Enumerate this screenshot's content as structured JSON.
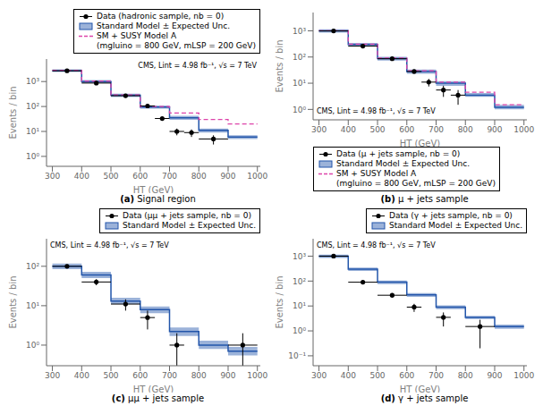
{
  "chart_data": [
    {
      "type": "histogram",
      "title": "(a) Signal region",
      "xlabel": "HT (GeV)",
      "ylabel": "Events / bin",
      "log": "y",
      "legend": "upper right",
      "annotations": [
        "CMS, Lint = 4.98 fb⁻¹, √s = 7 TeV"
      ],
      "bins": [
        300,
        400,
        500,
        600,
        650,
        700,
        750,
        800,
        900,
        1000
      ],
      "xlim": [
        280,
        1010
      ],
      "xticks": [
        300,
        400,
        500,
        600,
        700,
        800,
        900,
        1000
      ],
      "ylim": [
        0.4,
        8000
      ],
      "yticks": [
        {
          "value": 1,
          "label": "10⁰"
        },
        {
          "value": 10,
          "label": "10¹"
        },
        {
          "value": 100,
          "label": "10²"
        },
        {
          "value": 1000,
          "label": "10³"
        }
      ],
      "series": [
        {
          "name": "Data (hadronic sample, nb = 0)",
          "type": "scatter",
          "color": "#000000",
          "marker": "circle",
          "x": [
            350,
            450,
            550,
            625,
            675,
            725,
            775,
            850,
            950
          ],
          "xerr": [
            50,
            50,
            50,
            25,
            25,
            25,
            25,
            50,
            50
          ],
          "values": [
            2700,
            870,
            270,
            105,
            33,
            10,
            9,
            5,
            null
          ],
          "yerr_lo": [
            200,
            50,
            20,
            12,
            6,
            3,
            3,
            2,
            null
          ],
          "yerr_hi": [
            200,
            50,
            20,
            12,
            6,
            3,
            3,
            2,
            null
          ]
        },
        {
          "name": "Standard Model ± Expected Unc.",
          "type": "band",
          "color": "#2255aa",
          "values": [
            2700,
            1000,
            280,
            95,
            95,
            35,
            35,
            11,
            6
          ],
          "lower": [
            2400,
            870,
            240,
            82,
            82,
            29,
            29,
            9,
            5
          ],
          "upper": [
            3100,
            1150,
            330,
            110,
            110,
            42,
            42,
            13,
            7
          ]
        },
        {
          "name": "SM + SUSY Model A\n(mgluino = 800 GeV, mLSP = 200 GeV)",
          "type": "step",
          "color": "#dd44aa",
          "line_style": "dashed",
          "values": [
            2800,
            1050,
            290,
            100,
            100,
            55,
            55,
            30,
            20
          ]
        }
      ]
    },
    {
      "type": "histogram",
      "title": "(b) μ + jets sample",
      "xlabel": "HT (GeV)",
      "ylabel": "Events / bin",
      "log": "y",
      "legend": "lower left",
      "annotations": [
        "CMS, Lint = 4.98 fb⁻¹, √s = 7 TeV"
      ],
      "bins": [
        300,
        400,
        500,
        600,
        650,
        700,
        750,
        800,
        900,
        1000
      ],
      "xlim": [
        280,
        1010
      ],
      "xticks": [
        300,
        400,
        500,
        600,
        700,
        800,
        900,
        1000
      ],
      "ylim": [
        0.4,
        5000
      ],
      "yticks": [
        {
          "value": 1,
          "label": "10⁰"
        },
        {
          "value": 10,
          "label": "10¹"
        },
        {
          "value": 100,
          "label": "10²"
        },
        {
          "value": 1000,
          "label": "10³"
        }
      ],
      "series": [
        {
          "name": "Data (μ + jets sample, nb = 0)",
          "type": "scatter",
          "color": "#000000",
          "marker": "circle",
          "x": [
            350,
            450,
            550,
            625,
            675,
            725,
            775,
            850,
            950
          ],
          "xerr": [
            50,
            50,
            50,
            25,
            25,
            25,
            25,
            50,
            50
          ],
          "values": [
            990,
            260,
            86,
            28,
            11,
            5.5,
            3.5,
            null,
            null
          ],
          "yerr_lo": [
            45,
            18,
            10,
            5,
            3.5,
            2.5,
            2,
            null,
            null
          ],
          "yerr_hi": [
            45,
            18,
            10,
            5,
            3.5,
            2.5,
            2,
            null,
            null
          ]
        },
        {
          "name": "Standard Model ± Expected Unc.",
          "type": "band",
          "color": "#2255aa",
          "values": [
            1000,
            300,
            88,
            28,
            28,
            10,
            10,
            3.5,
            1.2
          ],
          "lower": [
            850,
            255,
            73,
            23,
            23,
            8,
            8,
            3,
            1.0
          ],
          "upper": [
            1150,
            345,
            103,
            33,
            33,
            12,
            12,
            4.2,
            1.5
          ]
        },
        {
          "name": "SM + SUSY Model A\n(mgluino = 800 GeV, mLSP = 200 GeV)",
          "type": "step",
          "color": "#dd44aa",
          "line_style": "dashed",
          "values": [
            1010,
            312,
            91,
            30,
            30,
            11,
            11,
            4.5,
            1.5
          ]
        }
      ]
    },
    {
      "type": "histogram",
      "title": "(c) μμ + jets sample",
      "xlabel": "HT (GeV)",
      "ylabel": "Events / bin",
      "log": "y",
      "legend": "upper right",
      "annotations": [
        "CMS, Lint = 4.98 fb⁻¹, √s = 7 TeV"
      ],
      "bins": [
        300,
        400,
        500,
        600,
        650,
        700,
        750,
        800,
        900,
        1000
      ],
      "xlim": [
        280,
        1010
      ],
      "xticks": [
        300,
        400,
        500,
        600,
        700,
        800,
        900,
        1000
      ],
      "ylim": [
        0.3,
        500
      ],
      "yticks": [
        {
          "value": 1,
          "label": "10⁰"
        },
        {
          "value": 10,
          "label": "10¹"
        },
        {
          "value": 100,
          "label": "10²"
        }
      ],
      "series": [
        {
          "name": "Data (μμ + jets sample, nb = 0)",
          "type": "scatter",
          "color": "#000000",
          "marker": "circle",
          "x": [
            350,
            450,
            550,
            625,
            675,
            725,
            775,
            850,
            950
          ],
          "xerr": [
            50,
            50,
            50,
            25,
            25,
            25,
            25,
            50,
            50
          ],
          "values": [
            100,
            40,
            11,
            5,
            null,
            1.0,
            null,
            null,
            1.0
          ],
          "yerr_lo": [
            11,
            7,
            3.5,
            2.5,
            null,
            1.0,
            null,
            null,
            1.0
          ],
          "yerr_hi": [
            11,
            7,
            3.5,
            2.5,
            null,
            1.0,
            null,
            null,
            1.0
          ]
        },
        {
          "name": "Standard Model ± Expected Unc.",
          "type": "band",
          "color": "#2255aa",
          "values": [
            100,
            60,
            13,
            8,
            8,
            2.2,
            2.2,
            1.0,
            0.7
          ],
          "lower": [
            85,
            50,
            11,
            6.5,
            6.5,
            1.7,
            1.7,
            0.8,
            0.55
          ],
          "upper": [
            117,
            72,
            16,
            9.5,
            9.5,
            2.8,
            2.8,
            1.3,
            0.9
          ]
        }
      ]
    },
    {
      "type": "histogram",
      "title": "(d) γ + jets sample",
      "xlabel": "HT (GeV)",
      "ylabel": "Events / bin",
      "log": "y",
      "legend": "upper right",
      "annotations": [
        "CMS, Lint = 4.98 fb⁻¹, √s = 7 TeV"
      ],
      "bins": [
        300,
        400,
        500,
        600,
        650,
        700,
        750,
        800,
        900,
        1000
      ],
      "xlim": [
        280,
        1010
      ],
      "xticks": [
        300,
        400,
        500,
        600,
        700,
        800,
        900,
        1000
      ],
      "ylim": [
        0.04,
        5000
      ],
      "yticks": [
        {
          "value": 0.1,
          "label": "10⁻¹"
        },
        {
          "value": 1,
          "label": "10⁰"
        },
        {
          "value": 10,
          "label": "10¹"
        },
        {
          "value": 100,
          "label": "10²"
        },
        {
          "value": 1000,
          "label": "10³"
        }
      ],
      "series": [
        {
          "name": "Data (γ + jets sample, nb = 0)",
          "type": "scatter",
          "color": "#000000",
          "marker": "circle",
          "x": [
            350,
            450,
            550,
            625,
            675,
            725,
            775,
            850,
            950
          ],
          "xerr": [
            50,
            50,
            50,
            25,
            25,
            25,
            25,
            50,
            50
          ],
          "values": [
            1000,
            90,
            27,
            9,
            null,
            3.5,
            null,
            1.5,
            null
          ],
          "yerr_lo": [
            45,
            10,
            5.5,
            3.2,
            null,
            2,
            null,
            1.3,
            null
          ],
          "yerr_hi": [
            45,
            10,
            5.5,
            3.2,
            null,
            2,
            null,
            1.3,
            null
          ]
        },
        {
          "name": "Standard Model ± Expected Unc.",
          "type": "band",
          "color": "#2255aa",
          "values": [
            1000,
            300,
            90,
            28,
            28,
            9,
            9,
            3.5,
            1.5
          ],
          "lower": [
            850,
            255,
            75,
            23,
            23,
            7.5,
            7.5,
            3,
            1.2
          ],
          "upper": [
            1150,
            345,
            105,
            33,
            33,
            10.5,
            10.5,
            4,
            1.8
          ]
        }
      ]
    }
  ]
}
